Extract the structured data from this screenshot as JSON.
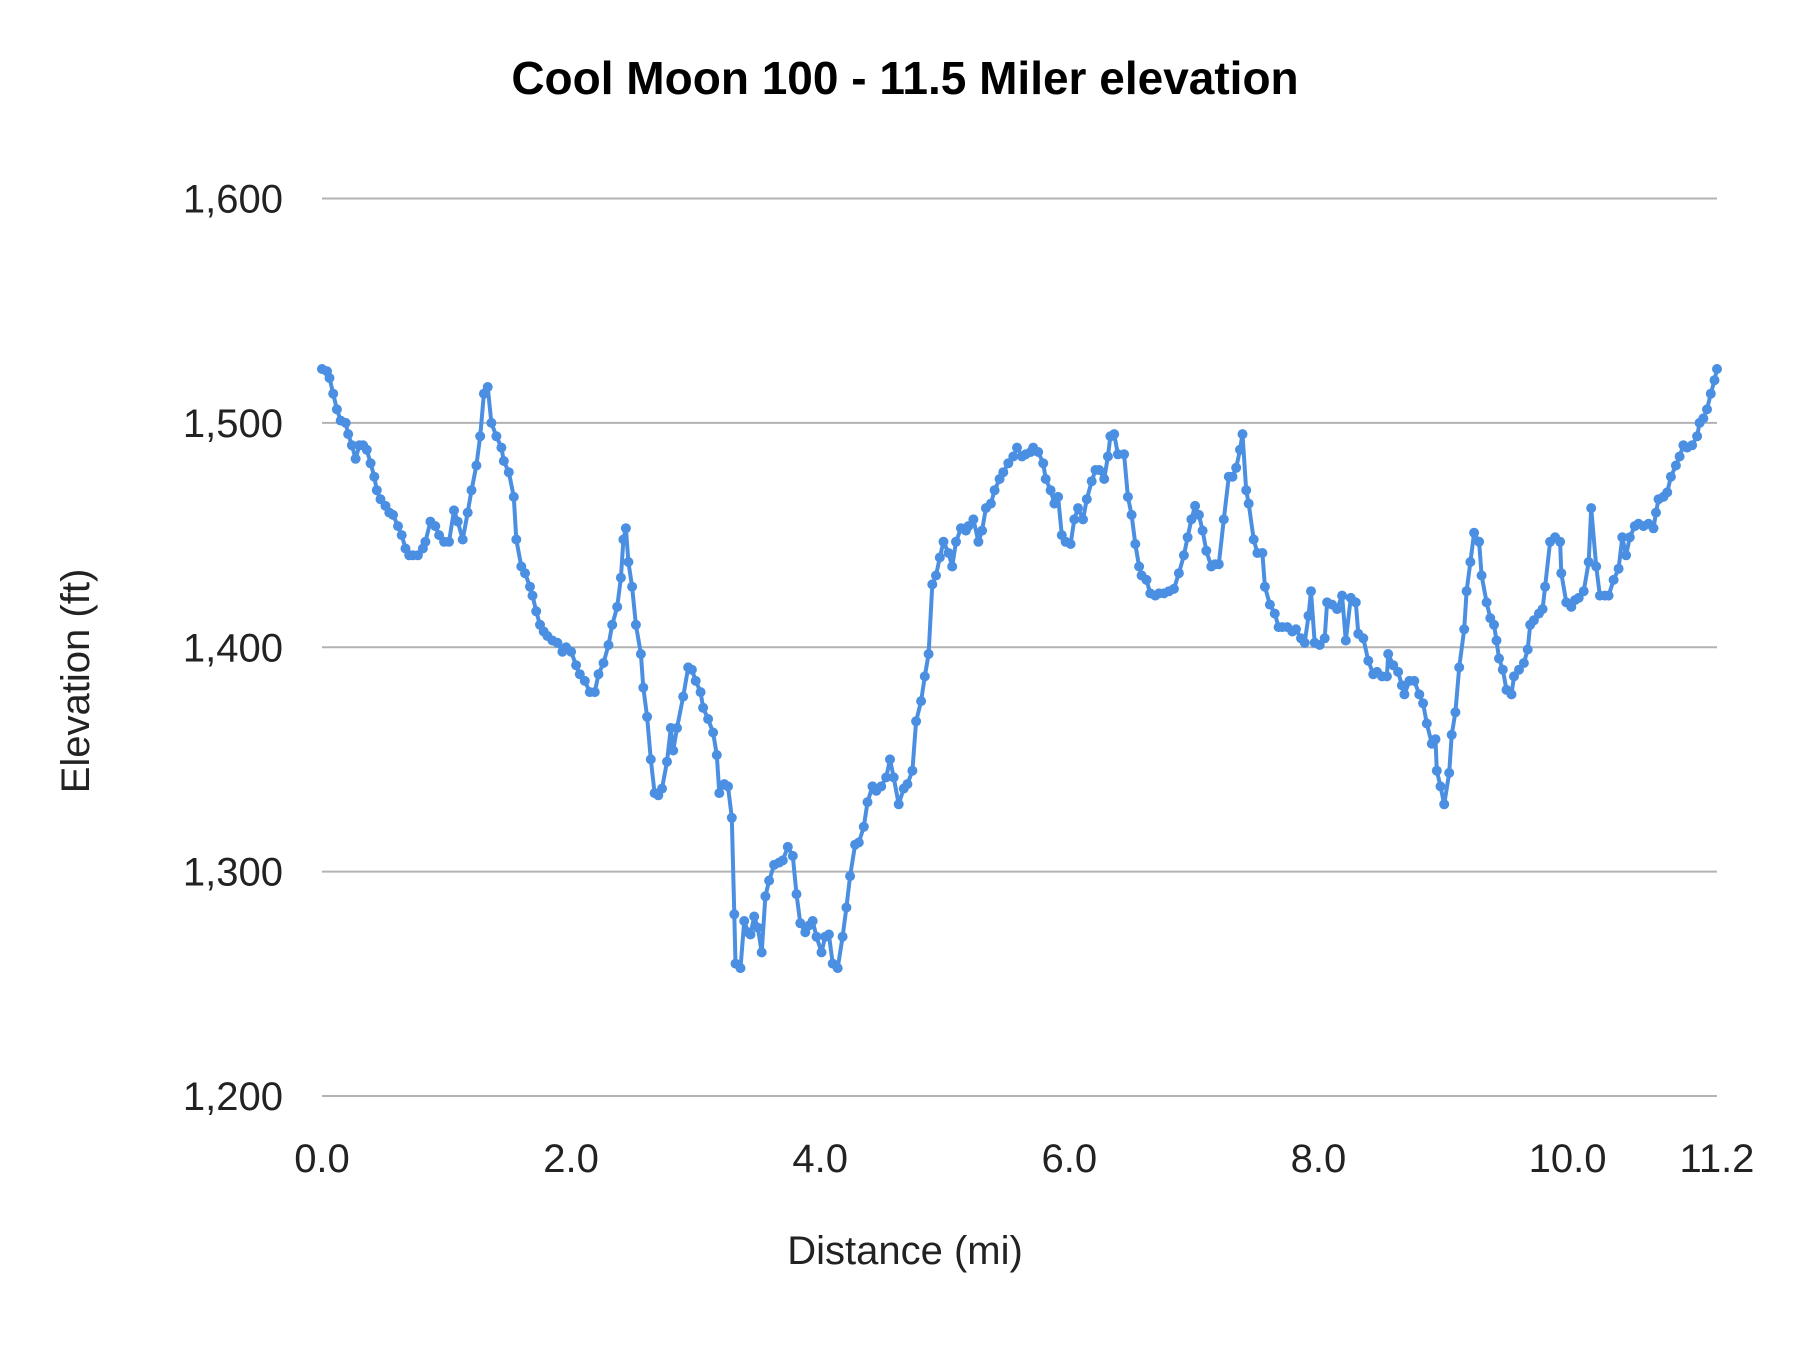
{
  "chart_data": {
    "type": "line",
    "title": "Cool Moon 100 - 11.5 Miler elevation",
    "xlabel": "Distance (mi)",
    "ylabel": "Elevation (ft)",
    "xlim": [
      0,
      11.2
    ],
    "ylim": [
      1200,
      1600
    ],
    "x_ticks": [
      "0.0",
      "2.0",
      "4.0",
      "6.0",
      "8.0",
      "10.0",
      "11.2"
    ],
    "x_tick_values": [
      0,
      2,
      4,
      6,
      8,
      10,
      11.2
    ],
    "y_ticks": [
      "1,200",
      "1,300",
      "1,400",
      "1,500",
      "1,600"
    ],
    "y_tick_values": [
      1200,
      1300,
      1400,
      1500,
      1600
    ],
    "grid": "horizontal",
    "legend": "none",
    "markers": true,
    "line_color": "#4a8fe2",
    "grid_color": "#b3b3b3",
    "points": [
      [
        0.0,
        1524
      ],
      [
        0.04,
        1523
      ],
      [
        0.06,
        1520
      ],
      [
        0.09,
        1513
      ],
      [
        0.12,
        1506
      ],
      [
        0.15,
        1501
      ],
      [
        0.19,
        1500
      ],
      [
        0.21,
        1495
      ],
      [
        0.24,
        1490
      ],
      [
        0.27,
        1484
      ],
      [
        0.3,
        1490
      ],
      [
        0.33,
        1490
      ],
      [
        0.36,
        1488
      ],
      [
        0.39,
        1482
      ],
      [
        0.42,
        1476
      ],
      [
        0.44,
        1470
      ],
      [
        0.47,
        1466
      ],
      [
        0.51,
        1463
      ],
      [
        0.54,
        1460
      ],
      [
        0.57,
        1459
      ],
      [
        0.61,
        1454
      ],
      [
        0.64,
        1450
      ],
      [
        0.67,
        1444
      ],
      [
        0.7,
        1441
      ],
      [
        0.73,
        1441
      ],
      [
        0.77,
        1441
      ],
      [
        0.81,
        1444
      ],
      [
        0.83,
        1447
      ],
      [
        0.87,
        1456
      ],
      [
        0.91,
        1454
      ],
      [
        0.94,
        1450
      ],
      [
        0.98,
        1447
      ],
      [
        1.02,
        1447
      ],
      [
        1.06,
        1461
      ],
      [
        1.09,
        1456
      ],
      [
        1.13,
        1448
      ],
      [
        1.17,
        1460
      ],
      [
        1.2,
        1470
      ],
      [
        1.24,
        1481
      ],
      [
        1.27,
        1494
      ],
      [
        1.3,
        1513
      ],
      [
        1.33,
        1516
      ],
      [
        1.36,
        1500
      ],
      [
        1.4,
        1494
      ],
      [
        1.44,
        1489
      ],
      [
        1.46,
        1483
      ],
      [
        1.5,
        1478
      ],
      [
        1.54,
        1467
      ],
      [
        1.56,
        1448
      ],
      [
        1.6,
        1436
      ],
      [
        1.63,
        1433
      ],
      [
        1.67,
        1427
      ],
      [
        1.69,
        1423
      ],
      [
        1.72,
        1416
      ],
      [
        1.75,
        1410
      ],
      [
        1.78,
        1407
      ],
      [
        1.81,
        1405
      ],
      [
        1.85,
        1403
      ],
      [
        1.89,
        1402
      ],
      [
        1.93,
        1398
      ],
      [
        1.96,
        1400
      ],
      [
        2.0,
        1398
      ],
      [
        2.04,
        1392
      ],
      [
        2.07,
        1388
      ],
      [
        2.11,
        1385
      ],
      [
        2.15,
        1380
      ],
      [
        2.19,
        1380
      ],
      [
        2.22,
        1388
      ],
      [
        2.26,
        1393
      ],
      [
        2.3,
        1401
      ],
      [
        2.33,
        1410
      ],
      [
        2.37,
        1418
      ],
      [
        2.4,
        1431
      ],
      [
        2.42,
        1448
      ],
      [
        2.44,
        1453
      ],
      [
        2.46,
        1438
      ],
      [
        2.49,
        1427
      ],
      [
        2.52,
        1410
      ],
      [
        2.56,
        1397
      ],
      [
        2.58,
        1382
      ],
      [
        2.61,
        1369
      ],
      [
        2.64,
        1350
      ],
      [
        2.67,
        1335
      ],
      [
        2.7,
        1334
      ],
      [
        2.73,
        1337
      ],
      [
        2.77,
        1349
      ],
      [
        2.8,
        1364
      ],
      [
        2.82,
        1354
      ],
      [
        2.85,
        1364
      ],
      [
        2.9,
        1378
      ],
      [
        2.94,
        1391
      ],
      [
        2.97,
        1390
      ],
      [
        3.0,
        1385
      ],
      [
        3.04,
        1380
      ],
      [
        3.06,
        1373
      ],
      [
        3.1,
        1368
      ],
      [
        3.14,
        1362
      ],
      [
        3.17,
        1352
      ],
      [
        3.19,
        1335
      ],
      [
        3.23,
        1339
      ],
      [
        3.26,
        1338
      ],
      [
        3.29,
        1324
      ],
      [
        3.31,
        1281
      ],
      [
        3.32,
        1259
      ],
      [
        3.36,
        1257
      ],
      [
        3.39,
        1278
      ],
      [
        3.42,
        1273
      ],
      [
        3.44,
        1272
      ],
      [
        3.47,
        1280
      ],
      [
        3.5,
        1275
      ],
      [
        3.53,
        1264
      ],
      [
        3.56,
        1289
      ],
      [
        3.59,
        1296
      ],
      [
        3.63,
        1303
      ],
      [
        3.67,
        1304
      ],
      [
        3.7,
        1305
      ],
      [
        3.74,
        1311
      ],
      [
        3.78,
        1307
      ],
      [
        3.81,
        1290
      ],
      [
        3.84,
        1277
      ],
      [
        3.88,
        1273
      ],
      [
        3.91,
        1276
      ],
      [
        3.94,
        1278
      ],
      [
        3.97,
        1271
      ],
      [
        4.01,
        1264
      ],
      [
        4.04,
        1271
      ],
      [
        4.07,
        1272
      ],
      [
        4.1,
        1259
      ],
      [
        4.14,
        1257
      ],
      [
        4.18,
        1271
      ],
      [
        4.21,
        1284
      ],
      [
        4.24,
        1298
      ],
      [
        4.28,
        1312
      ],
      [
        4.31,
        1313
      ],
      [
        4.35,
        1320
      ],
      [
        4.38,
        1331
      ],
      [
        4.42,
        1338
      ],
      [
        4.45,
        1336
      ],
      [
        4.49,
        1338
      ],
      [
        4.53,
        1342
      ],
      [
        4.56,
        1350
      ],
      [
        4.59,
        1342
      ],
      [
        4.63,
        1330
      ],
      [
        4.67,
        1337
      ],
      [
        4.7,
        1339
      ],
      [
        4.74,
        1345
      ],
      [
        4.77,
        1367
      ],
      [
        4.81,
        1376
      ],
      [
        4.84,
        1387
      ],
      [
        4.87,
        1397
      ],
      [
        4.9,
        1428
      ],
      [
        4.93,
        1432
      ],
      [
        4.96,
        1440
      ],
      [
        4.99,
        1447
      ],
      [
        5.03,
        1442
      ],
      [
        5.06,
        1436
      ],
      [
        5.09,
        1447
      ],
      [
        5.13,
        1453
      ],
      [
        5.17,
        1452
      ],
      [
        5.19,
        1454
      ],
      [
        5.23,
        1457
      ],
      [
        5.27,
        1447
      ],
      [
        5.3,
        1452
      ],
      [
        5.33,
        1462
      ],
      [
        5.37,
        1464
      ],
      [
        5.4,
        1470
      ],
      [
        5.44,
        1475
      ],
      [
        5.47,
        1478
      ],
      [
        5.51,
        1482
      ],
      [
        5.55,
        1485
      ],
      [
        5.58,
        1489
      ],
      [
        5.62,
        1485
      ],
      [
        5.65,
        1486
      ],
      [
        5.69,
        1487
      ],
      [
        5.71,
        1489
      ],
      [
        5.75,
        1487
      ],
      [
        5.79,
        1482
      ],
      [
        5.81,
        1475
      ],
      [
        5.85,
        1470
      ],
      [
        5.88,
        1464
      ],
      [
        5.91,
        1467
      ],
      [
        5.94,
        1450
      ],
      [
        5.97,
        1447
      ],
      [
        6.01,
        1446
      ],
      [
        6.04,
        1457
      ],
      [
        6.07,
        1462
      ],
      [
        6.11,
        1457
      ],
      [
        6.14,
        1466
      ],
      [
        6.18,
        1474
      ],
      [
        6.21,
        1479
      ],
      [
        6.24,
        1479
      ],
      [
        6.28,
        1475
      ],
      [
        6.31,
        1485
      ],
      [
        6.33,
        1494
      ],
      [
        6.36,
        1495
      ],
      [
        6.39,
        1486
      ],
      [
        6.44,
        1486
      ],
      [
        6.47,
        1467
      ],
      [
        6.5,
        1459
      ],
      [
        6.53,
        1446
      ],
      [
        6.56,
        1436
      ],
      [
        6.58,
        1432
      ],
      [
        6.62,
        1430
      ],
      [
        6.65,
        1424
      ],
      [
        6.69,
        1423
      ],
      [
        6.72,
        1424
      ],
      [
        6.76,
        1424
      ],
      [
        6.8,
        1425
      ],
      [
        6.84,
        1426
      ],
      [
        6.88,
        1433
      ],
      [
        6.92,
        1441
      ],
      [
        6.95,
        1449
      ],
      [
        6.98,
        1457
      ],
      [
        7.01,
        1463
      ],
      [
        7.04,
        1459
      ],
      [
        7.07,
        1452
      ],
      [
        7.1,
        1443
      ],
      [
        7.14,
        1436
      ],
      [
        7.17,
        1437
      ],
      [
        7.2,
        1437
      ],
      [
        7.24,
        1457
      ],
      [
        7.28,
        1476
      ],
      [
        7.31,
        1476
      ],
      [
        7.34,
        1480
      ],
      [
        7.37,
        1488
      ],
      [
        7.39,
        1495
      ],
      [
        7.42,
        1470
      ],
      [
        7.44,
        1464
      ],
      [
        7.48,
        1448
      ],
      [
        7.51,
        1442
      ],
      [
        7.55,
        1442
      ],
      [
        7.57,
        1427
      ],
      [
        7.61,
        1419
      ],
      [
        7.65,
        1415
      ],
      [
        7.68,
        1409
      ],
      [
        7.71,
        1409
      ],
      [
        7.75,
        1409
      ],
      [
        7.79,
        1407
      ],
      [
        7.82,
        1408
      ],
      [
        7.86,
        1404
      ],
      [
        7.89,
        1402
      ],
      [
        7.92,
        1414
      ],
      [
        7.94,
        1425
      ],
      [
        7.97,
        1402
      ],
      [
        8.01,
        1401
      ],
      [
        8.05,
        1404
      ],
      [
        8.07,
        1420
      ],
      [
        8.11,
        1419
      ],
      [
        8.15,
        1417
      ],
      [
        8.19,
        1423
      ],
      [
        8.22,
        1403
      ],
      [
        8.26,
        1422
      ],
      [
        8.3,
        1420
      ],
      [
        8.32,
        1406
      ],
      [
        8.36,
        1404
      ],
      [
        8.4,
        1394
      ],
      [
        8.44,
        1388
      ],
      [
        8.47,
        1389
      ],
      [
        8.51,
        1387
      ],
      [
        8.55,
        1387
      ],
      [
        8.56,
        1397
      ],
      [
        8.6,
        1392
      ],
      [
        8.64,
        1389
      ],
      [
        8.67,
        1383
      ],
      [
        8.69,
        1379
      ],
      [
        8.73,
        1385
      ],
      [
        8.77,
        1385
      ],
      [
        8.81,
        1379
      ],
      [
        8.84,
        1375
      ],
      [
        8.87,
        1366
      ],
      [
        8.91,
        1357
      ],
      [
        8.94,
        1359
      ],
      [
        8.95,
        1345
      ],
      [
        8.98,
        1338
      ],
      [
        9.01,
        1330
      ],
      [
        9.05,
        1344
      ],
      [
        9.07,
        1361
      ],
      [
        9.1,
        1371
      ],
      [
        9.13,
        1391
      ],
      [
        9.17,
        1408
      ],
      [
        9.19,
        1425
      ],
      [
        9.22,
        1438
      ],
      [
        9.25,
        1451
      ],
      [
        9.29,
        1447
      ],
      [
        9.31,
        1432
      ],
      [
        9.35,
        1420
      ],
      [
        9.38,
        1413
      ],
      [
        9.41,
        1410
      ],
      [
        9.43,
        1403
      ],
      [
        9.45,
        1395
      ],
      [
        9.48,
        1390
      ],
      [
        9.51,
        1381
      ],
      [
        9.55,
        1379
      ],
      [
        9.57,
        1387
      ],
      [
        9.61,
        1390
      ],
      [
        9.65,
        1393
      ],
      [
        9.68,
        1399
      ],
      [
        9.7,
        1410
      ],
      [
        9.73,
        1412
      ],
      [
        9.77,
        1415
      ],
      [
        9.8,
        1417
      ],
      [
        9.82,
        1427
      ],
      [
        9.86,
        1447
      ],
      [
        9.9,
        1449
      ],
      [
        9.94,
        1447
      ],
      [
        9.95,
        1433
      ],
      [
        9.99,
        1420
      ],
      [
        10.03,
        1418
      ],
      [
        10.06,
        1421
      ],
      [
        10.09,
        1422
      ],
      [
        10.13,
        1425
      ],
      [
        10.17,
        1438
      ],
      [
        10.19,
        1462
      ],
      [
        10.23,
        1436
      ],
      [
        10.26,
        1423
      ],
      [
        10.3,
        1423
      ],
      [
        10.33,
        1423
      ],
      [
        10.37,
        1430
      ],
      [
        10.41,
        1435
      ],
      [
        10.44,
        1449
      ],
      [
        10.47,
        1441
      ],
      [
        10.5,
        1449
      ],
      [
        10.54,
        1454
      ],
      [
        10.57,
        1455
      ],
      [
        10.61,
        1454
      ],
      [
        10.65,
        1455
      ],
      [
        10.69,
        1453
      ],
      [
        10.71,
        1460
      ],
      [
        10.73,
        1466
      ],
      [
        10.77,
        1467
      ],
      [
        10.8,
        1469
      ],
      [
        10.83,
        1476
      ],
      [
        10.87,
        1481
      ],
      [
        10.9,
        1485
      ],
      [
        10.93,
        1490
      ],
      [
        10.96,
        1489
      ],
      [
        11.0,
        1490
      ],
      [
        11.04,
        1494
      ],
      [
        11.06,
        1500
      ],
      [
        11.09,
        1502
      ],
      [
        11.12,
        1506
      ],
      [
        11.15,
        1513
      ],
      [
        11.18,
        1519
      ],
      [
        11.2,
        1524
      ]
    ]
  }
}
